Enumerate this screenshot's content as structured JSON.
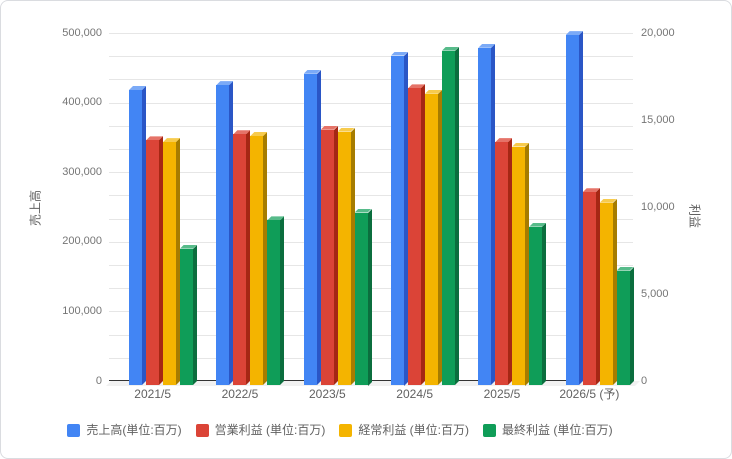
{
  "chart_data": {
    "type": "bar",
    "subtype": "grouped-3d-column",
    "categories": [
      "2021/5",
      "2022/5",
      "2023/5",
      "2024/5",
      "2025/5",
      "2026/5 (予)"
    ],
    "series": [
      {
        "name": "売上高(単位:百万)",
        "axis": "left",
        "color": "#4285f4",
        "color_side": "#2a56c6",
        "color_top": "#7baaf7",
        "values": [
          419000,
          426000,
          442000,
          468000,
          479000,
          497000
        ]
      },
      {
        "name": "営業利益 (単位:百万)",
        "axis": "right",
        "color": "#db4437",
        "color_side": "#a52714",
        "color_top": "#e57368",
        "values": [
          13900,
          14250,
          14500,
          16850,
          13800,
          10950
        ]
      },
      {
        "name": "経常利益 (単位:百万)",
        "axis": "right",
        "color": "#f4b400",
        "color_side": "#a67c00",
        "color_top": "#f7cb4d",
        "values": [
          13800,
          14150,
          14400,
          16550,
          13550,
          10350
        ]
      },
      {
        "name": "最終利益 (単位:百万)",
        "axis": "right",
        "color": "#0f9d58",
        "color_side": "#0b6e3e",
        "color_top": "#57bb8a",
        "values": [
          7750,
          9350,
          9800,
          19000,
          9000,
          6500
        ]
      }
    ],
    "title": "",
    "xlabel": "",
    "ylabel_left": "売上高",
    "ylabel_right": "利益",
    "axis_left": {
      "min": 0,
      "max": 500000,
      "tick_labels": [
        "0",
        "100,000",
        "200,000",
        "300,000",
        "400,000",
        "500,000"
      ]
    },
    "axis_right": {
      "min": 0,
      "max": 20000,
      "tick_labels": [
        "0",
        "5,000",
        "10,000",
        "15,000",
        "20,000"
      ]
    },
    "gridline_intervals": 15,
    "grid": true,
    "legend_position": "bottom",
    "colors": {
      "gridline": "#e6e6e6",
      "baseline": "#333333",
      "tick_text": "#757575",
      "label_text": "#616161",
      "border": "#dadce0",
      "background": "#ffffff"
    }
  }
}
